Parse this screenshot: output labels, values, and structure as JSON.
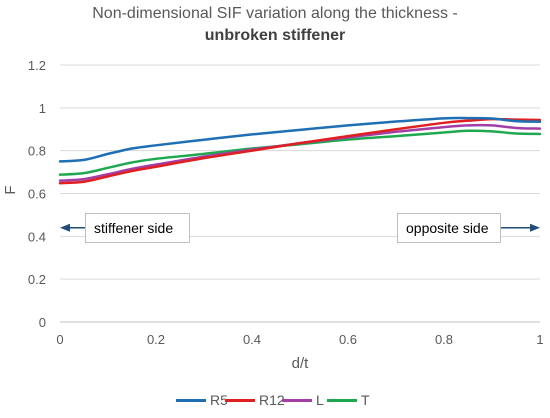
{
  "chart_data": {
    "type": "line",
    "title_line1": "Non-dimensional SIF variation along the thickness -",
    "title_line2": "unbroken stiffener",
    "xlabel": "d/t",
    "ylabel": "F",
    "xlim": [
      0,
      1
    ],
    "ylim": [
      0,
      1.2
    ],
    "x_ticks": [
      0,
      0.2,
      0.4,
      0.6,
      0.8,
      1
    ],
    "x_tick_labels": [
      "0",
      "0.2",
      "0.4",
      "0.6",
      "0.8",
      "1"
    ],
    "y_ticks": [
      0,
      0.2,
      0.4,
      0.6,
      0.8,
      1,
      1.2
    ],
    "y_tick_labels": [
      "0",
      "0.2",
      "0.4",
      "0.6",
      "0.8",
      "1",
      "1.2"
    ],
    "grid": "horizontal",
    "legend_position": "bottom",
    "x": [
      0,
      0.05,
      0.1,
      0.15,
      0.2,
      0.3,
      0.4,
      0.5,
      0.6,
      0.7,
      0.8,
      0.85,
      0.9,
      0.95,
      1
    ],
    "series": [
      {
        "name": "R5",
        "color": "#1F6FB4",
        "values": [
          0.75,
          0.757,
          0.785,
          0.81,
          0.825,
          0.851,
          0.876,
          0.897,
          0.918,
          0.936,
          0.951,
          0.952,
          0.95,
          0.938,
          0.935
        ]
      },
      {
        "name": "R12",
        "color": "#E02020",
        "values": [
          0.648,
          0.655,
          0.68,
          0.705,
          0.725,
          0.765,
          0.8,
          0.835,
          0.868,
          0.9,
          0.93,
          0.94,
          0.947,
          0.945,
          0.943
        ]
      },
      {
        "name": "L",
        "color": "#A23EA6",
        "values": [
          0.66,
          0.667,
          0.69,
          0.715,
          0.735,
          0.772,
          0.805,
          0.835,
          0.862,
          0.888,
          0.91,
          0.918,
          0.918,
          0.906,
          0.903
        ]
      },
      {
        "name": "T",
        "color": "#1FA84F",
        "values": [
          0.688,
          0.695,
          0.72,
          0.745,
          0.762,
          0.785,
          0.81,
          0.83,
          0.852,
          0.868,
          0.885,
          0.893,
          0.89,
          0.88,
          0.878
        ]
      }
    ],
    "annotations": [
      {
        "text": "stiffener side",
        "arrow": "left"
      },
      {
        "text": "opposite side",
        "arrow": "right"
      }
    ]
  }
}
